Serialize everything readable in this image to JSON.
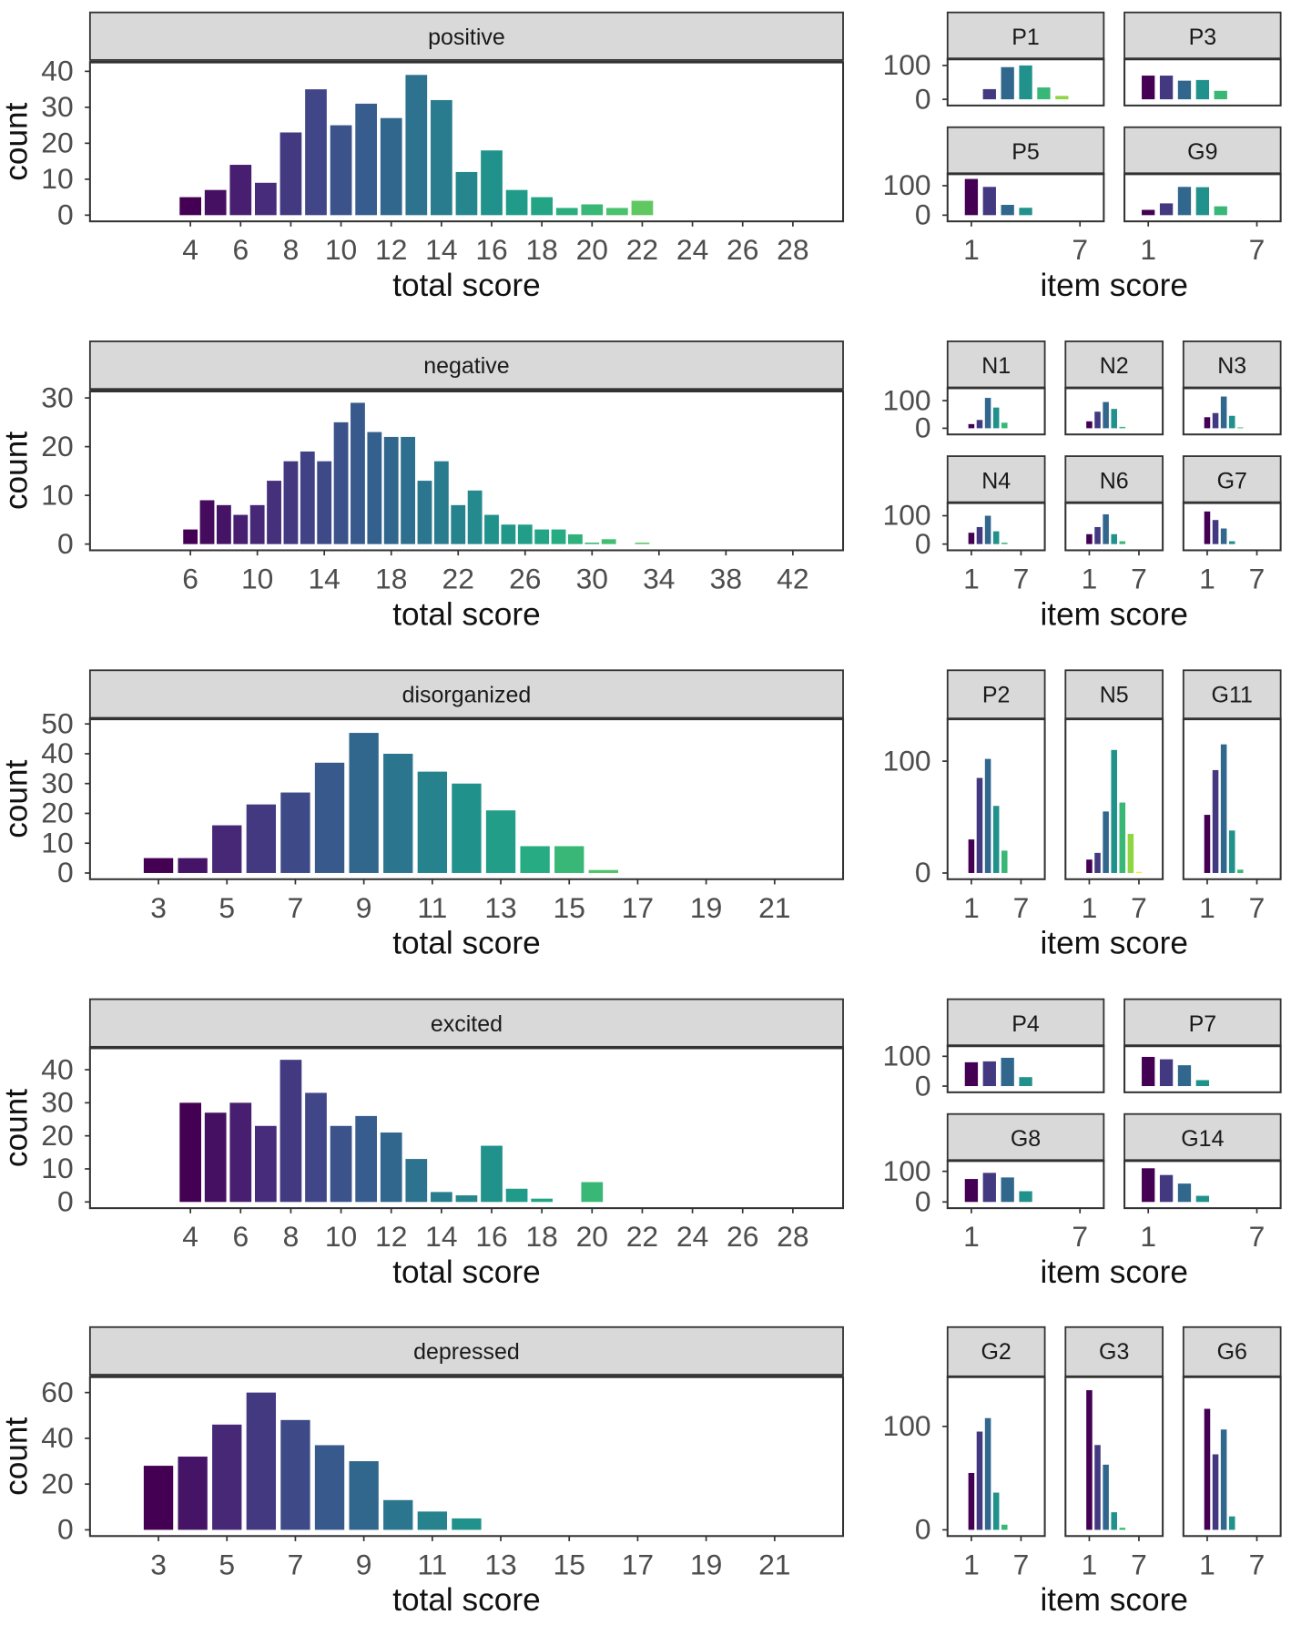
{
  "chart_data": [
    {
      "type": "bar",
      "row": 0,
      "title": "positive",
      "xlabel": "total score",
      "ylabel": "count",
      "x": [
        4,
        5,
        6,
        7,
        8,
        9,
        10,
        11,
        12,
        13,
        14,
        15,
        16,
        17,
        18,
        19,
        20,
        21,
        22
      ],
      "values": [
        5,
        7,
        14,
        9,
        23,
        35,
        25,
        31,
        27,
        39,
        32,
        12,
        18,
        7,
        5,
        2,
        3,
        2,
        4
      ],
      "xticks": [
        4,
        6,
        8,
        10,
        12,
        14,
        16,
        18,
        20,
        22,
        24,
        26,
        28
      ],
      "yticks": [
        0,
        10,
        20,
        30,
        40
      ],
      "xlim": [
        0,
        30
      ],
      "ylim": [
        0,
        42
      ],
      "color_range": [
        4,
        28
      ]
    },
    {
      "type": "bar",
      "row": 1,
      "title": "negative",
      "xlabel": "total score",
      "ylabel": "count",
      "x": [
        6,
        7,
        8,
        9,
        10,
        11,
        12,
        13,
        14,
        15,
        16,
        17,
        18,
        19,
        20,
        21,
        22,
        23,
        24,
        25,
        26,
        27,
        28,
        29,
        30,
        31,
        33
      ],
      "values": [
        3,
        9,
        8,
        6,
        8,
        13,
        17,
        19,
        17,
        25,
        29,
        23,
        22,
        22,
        13,
        17,
        8,
        11,
        6,
        4,
        4,
        3,
        3,
        2,
        0.3,
        1,
        0.3
      ],
      "xticks": [
        6,
        10,
        14,
        18,
        22,
        26,
        30,
        34,
        38,
        42
      ],
      "yticks": [
        0,
        10,
        20,
        30
      ],
      "xlim": [
        0,
        45
      ],
      "ylim": [
        0,
        31
      ],
      "color_range": [
        6,
        42
      ]
    },
    {
      "type": "bar",
      "row": 2,
      "title": "disorganized",
      "xlabel": "total score",
      "ylabel": "count",
      "x": [
        3,
        4,
        5,
        6,
        7,
        8,
        9,
        10,
        11,
        12,
        13,
        14,
        15,
        16
      ],
      "values": [
        5,
        5,
        16,
        23,
        27,
        37,
        47,
        40,
        34,
        30,
        21,
        9,
        9,
        1
      ],
      "xticks": [
        3,
        5,
        7,
        9,
        11,
        13,
        15,
        17,
        19,
        21
      ],
      "yticks": [
        0,
        10,
        20,
        30,
        40,
        50
      ],
      "xlim": [
        1,
        23
      ],
      "ylim": [
        0,
        51
      ],
      "color_range": [
        3,
        21
      ]
    },
    {
      "type": "bar",
      "row": 3,
      "title": "excited",
      "xlabel": "total score",
      "ylabel": "count",
      "x": [
        4,
        5,
        6,
        7,
        8,
        9,
        10,
        11,
        12,
        13,
        14,
        15,
        16,
        17,
        18,
        20
      ],
      "values": [
        30,
        27,
        30,
        23,
        43,
        33,
        23,
        26,
        21,
        13,
        3,
        2,
        17,
        4,
        1,
        6
      ],
      "xticks": [
        4,
        6,
        8,
        10,
        12,
        14,
        16,
        18,
        20,
        22,
        24,
        26,
        28
      ],
      "yticks": [
        0,
        10,
        20,
        30,
        40
      ],
      "xlim": [
        0,
        30
      ],
      "ylim": [
        0,
        46
      ],
      "color_range": [
        4,
        28
      ]
    },
    {
      "type": "bar",
      "row": 4,
      "title": "depressed",
      "xlabel": "total score",
      "ylabel": "count",
      "x": [
        3,
        4,
        5,
        6,
        7,
        8,
        9,
        10,
        11,
        12
      ],
      "values": [
        28,
        32,
        46,
        60,
        48,
        37,
        30,
        13,
        8,
        5
      ],
      "xticks": [
        3,
        5,
        7,
        9,
        11,
        13,
        15,
        17,
        19,
        21
      ],
      "yticks": [
        0,
        20,
        40,
        60
      ],
      "xlim": [
        1,
        23
      ],
      "ylim": [
        0,
        66
      ],
      "color_range": [
        3,
        21
      ]
    },
    {
      "type": "bar",
      "row": 0,
      "facet": "P1",
      "xlabel": "item score",
      "x": [
        1,
        2,
        3,
        4,
        5,
        6,
        7
      ],
      "values": [
        0,
        30,
        95,
        100,
        35,
        10,
        0
      ],
      "xticks": [
        1,
        7
      ],
      "yticks": [
        0,
        100
      ],
      "ylim": [
        0,
        110
      ]
    },
    {
      "type": "bar",
      "row": 0,
      "facet": "P3",
      "xlabel": "item score",
      "x": [
        1,
        2,
        3,
        4,
        5,
        6,
        7
      ],
      "values": [
        70,
        70,
        55,
        57,
        25,
        0,
        0
      ],
      "xticks": [
        1,
        7
      ],
      "yticks": [
        0,
        100
      ],
      "ylim": [
        0,
        110
      ]
    },
    {
      "type": "bar",
      "row": 0,
      "facet": "P5",
      "xlabel": "item score",
      "x": [
        1,
        2,
        3,
        4,
        5,
        6,
        7
      ],
      "values": [
        123,
        96,
        35,
        25,
        0,
        0,
        0
      ],
      "xticks": [
        1,
        7
      ],
      "yticks": [
        0,
        100
      ],
      "ylim": [
        0,
        130
      ]
    },
    {
      "type": "bar",
      "row": 0,
      "facet": "G9",
      "xlabel": "item score",
      "x": [
        1,
        2,
        3,
        4,
        5,
        6,
        7
      ],
      "values": [
        18,
        40,
        96,
        95,
        30,
        0,
        0
      ],
      "xticks": [
        1,
        7
      ],
      "yticks": [
        0,
        100
      ],
      "ylim": [
        0,
        130
      ]
    },
    {
      "type": "bar",
      "row": 1,
      "facet": "N1",
      "xlabel": "item score",
      "x": [
        1,
        2,
        3,
        4,
        5,
        6,
        7
      ],
      "values": [
        15,
        30,
        110,
        75,
        20,
        0,
        0
      ],
      "xticks": [
        1,
        7
      ],
      "yticks": [
        0,
        100
      ],
      "ylim": [
        0,
        135
      ]
    },
    {
      "type": "bar",
      "row": 1,
      "facet": "N2",
      "xlabel": "item score",
      "x": [
        1,
        2,
        3,
        4,
        5,
        6,
        7
      ],
      "values": [
        25,
        60,
        95,
        70,
        5,
        0,
        0
      ],
      "xticks": [
        1,
        7
      ],
      "yticks": [
        0,
        100
      ],
      "ylim": [
        0,
        135
      ]
    },
    {
      "type": "bar",
      "row": 1,
      "facet": "N3",
      "xlabel": "item score",
      "x": [
        1,
        2,
        3,
        4,
        5,
        6,
        7
      ],
      "values": [
        40,
        55,
        115,
        45,
        3,
        0,
        0
      ],
      "xticks": [
        1,
        7
      ],
      "yticks": [
        0,
        100
      ],
      "ylim": [
        0,
        135
      ]
    },
    {
      "type": "bar",
      "row": 1,
      "facet": "N4",
      "xlabel": "item score",
      "x": [
        1,
        2,
        3,
        4,
        5,
        6,
        7
      ],
      "values": [
        40,
        60,
        100,
        45,
        5,
        0,
        0
      ],
      "xticks": [
        1,
        7
      ],
      "yticks": [
        0,
        100
      ],
      "ylim": [
        0,
        135
      ]
    },
    {
      "type": "bar",
      "row": 1,
      "facet": "N6",
      "xlabel": "item score",
      "x": [
        1,
        2,
        3,
        4,
        5,
        6,
        7
      ],
      "values": [
        35,
        60,
        105,
        35,
        10,
        0,
        0
      ],
      "xticks": [
        1,
        7
      ],
      "yticks": [
        0,
        100
      ],
      "ylim": [
        0,
        135
      ]
    },
    {
      "type": "bar",
      "row": 1,
      "facet": "G7",
      "xlabel": "item score",
      "x": [
        1,
        2,
        3,
        4,
        5,
        6,
        7
      ],
      "values": [
        115,
        85,
        55,
        10,
        0,
        0,
        0
      ],
      "xticks": [
        1,
        7
      ],
      "yticks": [
        0,
        100
      ],
      "ylim": [
        0,
        135
      ]
    },
    {
      "type": "bar",
      "row": 2,
      "facet": "P2",
      "xlabel": "item score",
      "x": [
        1,
        2,
        3,
        4,
        5,
        6,
        7
      ],
      "values": [
        30,
        85,
        102,
        60,
        20,
        0,
        0
      ],
      "xticks": [
        1,
        7
      ],
      "yticks": [
        0,
        100
      ],
      "ylim": [
        0,
        135
      ]
    },
    {
      "type": "bar",
      "row": 2,
      "facet": "N5",
      "xlabel": "item score",
      "x": [
        1,
        2,
        3,
        4,
        5,
        6,
        7
      ],
      "values": [
        12,
        18,
        55,
        110,
        63,
        35,
        1
      ],
      "xticks": [
        1,
        7
      ],
      "yticks": [
        0,
        100
      ],
      "ylim": [
        0,
        135
      ]
    },
    {
      "type": "bar",
      "row": 2,
      "facet": "G11",
      "xlabel": "item score",
      "x": [
        1,
        2,
        3,
        4,
        5,
        6,
        7
      ],
      "values": [
        52,
        92,
        115,
        38,
        3,
        0,
        0
      ],
      "xticks": [
        1,
        7
      ],
      "yticks": [
        0,
        100
      ],
      "ylim": [
        0,
        135
      ]
    },
    {
      "type": "bar",
      "row": 3,
      "facet": "P4",
      "xlabel": "item score",
      "x": [
        1,
        2,
        3,
        4,
        5,
        6,
        7
      ],
      "values": [
        80,
        83,
        95,
        30,
        0,
        0,
        0
      ],
      "xticks": [
        1,
        7
      ],
      "yticks": [
        0,
        100
      ],
      "ylim": [
        0,
        125
      ]
    },
    {
      "type": "bar",
      "row": 3,
      "facet": "P7",
      "xlabel": "item score",
      "x": [
        1,
        2,
        3,
        4,
        5,
        6,
        7
      ],
      "values": [
        98,
        90,
        70,
        20,
        0,
        0,
        0
      ],
      "xticks": [
        1,
        7
      ],
      "yticks": [
        0,
        100
      ],
      "ylim": [
        0,
        125
      ]
    },
    {
      "type": "bar",
      "row": 3,
      "facet": "G8",
      "xlabel": "item score",
      "x": [
        1,
        2,
        3,
        4,
        5,
        6,
        7
      ],
      "values": [
        75,
        95,
        80,
        35,
        0,
        0,
        0
      ],
      "xticks": [
        1,
        7
      ],
      "yticks": [
        0,
        100
      ],
      "ylim": [
        0,
        125
      ]
    },
    {
      "type": "bar",
      "row": 3,
      "facet": "G14",
      "xlabel": "item score",
      "x": [
        1,
        2,
        3,
        4,
        5,
        6,
        7
      ],
      "values": [
        110,
        88,
        60,
        20,
        0,
        0,
        0
      ],
      "xticks": [
        1,
        7
      ],
      "yticks": [
        0,
        100
      ],
      "ylim": [
        0,
        125
      ]
    },
    {
      "type": "bar",
      "row": 4,
      "facet": "G2",
      "xlabel": "item score",
      "x": [
        1,
        2,
        3,
        4,
        5,
        6,
        7
      ],
      "values": [
        55,
        95,
        108,
        36,
        5,
        0,
        0
      ],
      "xticks": [
        1,
        7
      ],
      "yticks": [
        0,
        100
      ],
      "ylim": [
        0,
        145
      ]
    },
    {
      "type": "bar",
      "row": 4,
      "facet": "G3",
      "xlabel": "item score",
      "x": [
        1,
        2,
        3,
        4,
        5,
        6,
        7
      ],
      "values": [
        135,
        82,
        63,
        17,
        2,
        0,
        0
      ],
      "xticks": [
        1,
        7
      ],
      "yticks": [
        0,
        100
      ],
      "ylim": [
        0,
        145
      ]
    },
    {
      "type": "bar",
      "row": 4,
      "facet": "G6",
      "xlabel": "item score",
      "x": [
        1,
        2,
        3,
        4,
        5,
        6,
        7
      ],
      "values": [
        117,
        73,
        97,
        13,
        0,
        0,
        0
      ],
      "xticks": [
        1,
        7
      ],
      "yticks": [
        0,
        100
      ],
      "ylim": [
        0,
        145
      ]
    }
  ]
}
